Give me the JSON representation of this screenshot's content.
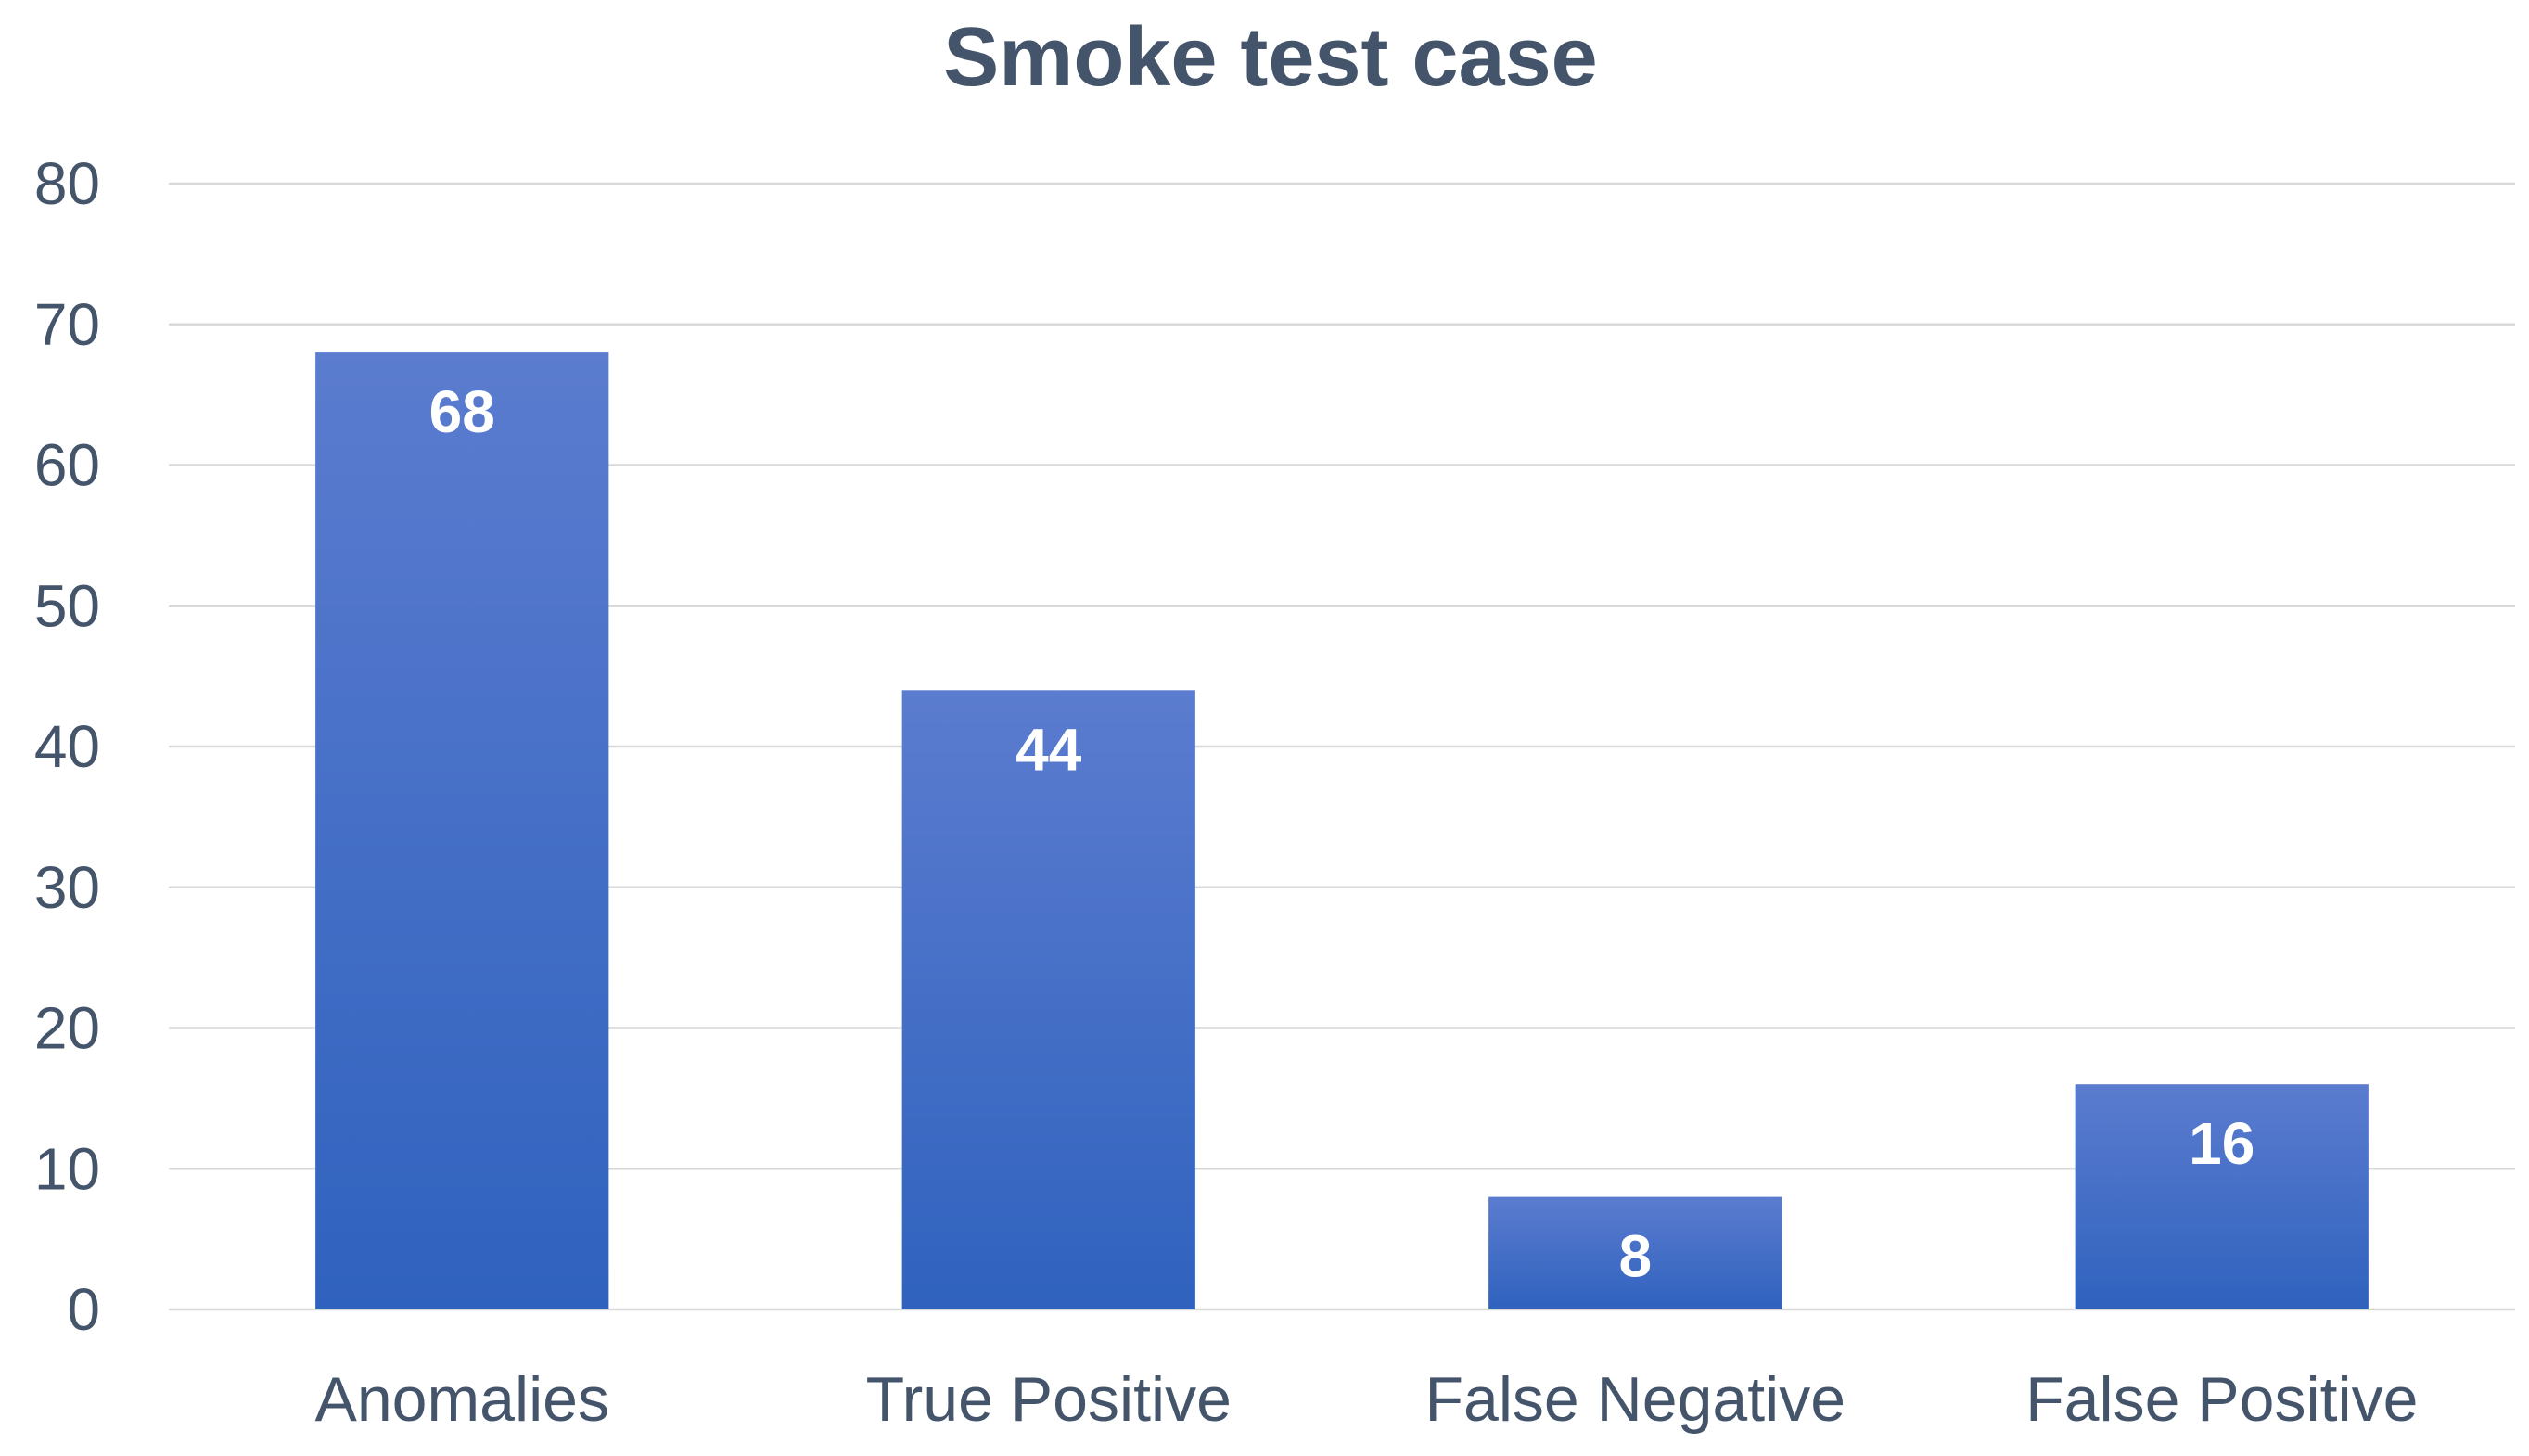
{
  "chart_data": {
    "type": "bar",
    "title": "Smoke test case",
    "xlabel": "",
    "ylabel": "",
    "categories": [
      "Anomalies",
      "True Positive",
      "False Negative",
      "False Positive"
    ],
    "values": [
      68,
      44,
      8,
      16
    ],
    "ylim": [
      0,
      80
    ],
    "yticks": [
      "0",
      "10",
      "20",
      "30",
      "40",
      "50",
      "60",
      "70",
      "80"
    ],
    "data_labels": [
      "68",
      "44",
      "8",
      "16"
    ],
    "grid": true,
    "legend": "none",
    "colors": {
      "bar_top": "#5b7ccf",
      "bar_bottom": "#2f62be",
      "text": "#44546a",
      "grid": "#d9d9d9"
    }
  }
}
